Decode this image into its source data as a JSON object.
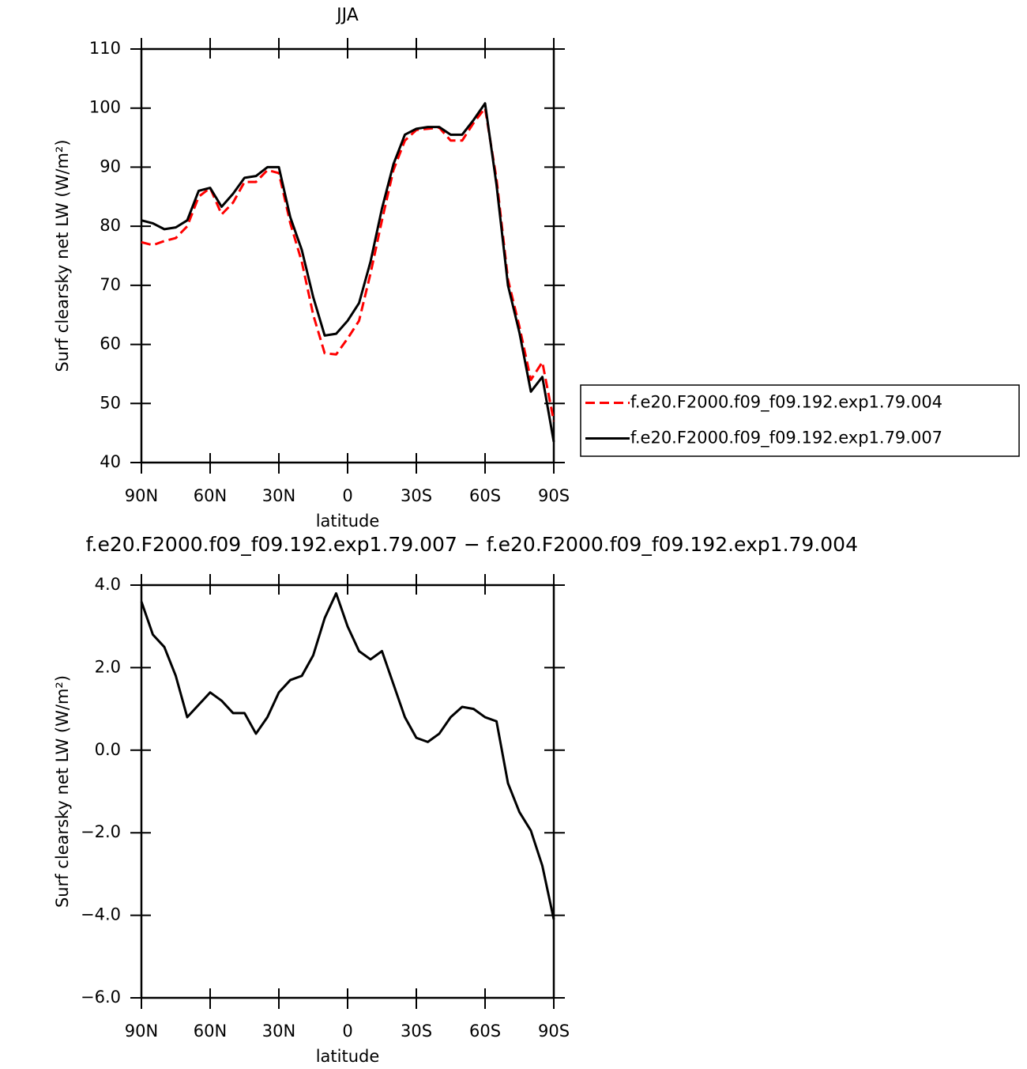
{
  "chart_data": [
    {
      "type": "line",
      "title": "JJA",
      "xlabel": "latitude",
      "ylabel": "Surf clearsky net LW (W/m²)",
      "x": [
        90,
        85,
        80,
        75,
        70,
        65,
        60,
        55,
        50,
        45,
        40,
        35,
        30,
        25,
        20,
        15,
        10,
        5,
        0,
        -5,
        -10,
        -15,
        -20,
        -25,
        -30,
        -35,
        -40,
        -45,
        -50,
        -55,
        -60,
        -65,
        -70,
        -75,
        -80,
        -85,
        -90
      ],
      "xlim": [
        90,
        -90
      ],
      "xticks": [
        {
          "value": 90,
          "label": "90N"
        },
        {
          "value": 60,
          "label": "60N"
        },
        {
          "value": 30,
          "label": "30N"
        },
        0,
        {
          "value": -30,
          "label": "30S"
        },
        {
          "value": -60,
          "label": "60S"
        },
        {
          "value": -90,
          "label": "90S"
        }
      ],
      "ylim": [
        40,
        110
      ],
      "yticks": [
        40,
        50,
        60,
        70,
        80,
        90,
        100,
        110
      ],
      "legend": "right",
      "series": [
        {
          "name": "f.e20.F2000.f09_f09.192.exp1.79.004",
          "color": "#ff0000",
          "style": "dashed",
          "values": [
            77.3,
            76.8,
            77.5,
            78,
            80,
            85,
            86.5,
            82,
            84,
            87.5,
            87.5,
            89.5,
            89,
            80.5,
            74,
            65,
            58.5,
            58.3,
            61,
            64,
            72,
            81,
            89.5,
            94.5,
            96.3,
            96.5,
            96.7,
            94.5,
            94.5,
            97.5,
            100,
            88,
            71,
            63,
            54,
            57,
            47
          ]
        },
        {
          "name": "f.e20.F2000.f09_f09.192.exp1.79.007",
          "color": "#000000",
          "style": "solid",
          "values": [
            81,
            80.5,
            79.5,
            79.8,
            81,
            86,
            86.5,
            83.3,
            85.5,
            88.2,
            88.5,
            90,
            90,
            81.5,
            76,
            68,
            61.5,
            61.8,
            64,
            67,
            74,
            83,
            90.5,
            95.5,
            96.5,
            96.8,
            96.8,
            95.5,
            95.5,
            98,
            100.8,
            87,
            70,
            62,
            52,
            54.5,
            43.5
          ]
        }
      ]
    },
    {
      "type": "line",
      "title": "f.e20.F2000.f09_f09.192.exp1.79.007 − f.e20.F2000.f09_f09.192.exp1.79.004",
      "xlabel": "latitude",
      "ylabel": "Surf clearsky net LW (W/m²)",
      "x": [
        90,
        85,
        80,
        75,
        70,
        65,
        60,
        55,
        50,
        45,
        40,
        35,
        30,
        25,
        20,
        15,
        10,
        5,
        0,
        -5,
        -10,
        -15,
        -20,
        -25,
        -30,
        -35,
        -40,
        -45,
        -50,
        -55,
        -60,
        -65,
        -70,
        -75,
        -80,
        -85,
        -90
      ],
      "xlim": [
        90,
        -90
      ],
      "xticks": [
        {
          "value": 90,
          "label": "90N"
        },
        {
          "value": 60,
          "label": "60N"
        },
        {
          "value": 30,
          "label": "30N"
        },
        0,
        {
          "value": -30,
          "label": "30S"
        },
        {
          "value": -60,
          "label": "60S"
        },
        {
          "value": -90,
          "label": "90S"
        }
      ],
      "ylim": [
        -6,
        4
      ],
      "yticks": [
        {
          "value": -6,
          "label": "−6.0"
        },
        {
          "value": -4,
          "label": "−4.0"
        },
        {
          "value": -2,
          "label": "−2.0"
        },
        {
          "value": 0,
          "label": "0.0"
        },
        {
          "value": 2,
          "label": "2.0"
        },
        {
          "value": 4,
          "label": "4.0"
        }
      ],
      "series": [
        {
          "color": "#000000",
          "style": "solid",
          "values": [
            3.6,
            2.8,
            2.5,
            1.8,
            0.8,
            1.1,
            1.4,
            1.2,
            0.9,
            0.9,
            0.4,
            0.8,
            1.4,
            1.7,
            1.8,
            2.3,
            3.2,
            3.8,
            3.0,
            2.4,
            2.2,
            2.4,
            1.6,
            0.8,
            0.3,
            0.2,
            0.4,
            0.8,
            1.05,
            1.0,
            0.8,
            0.7,
            -0.8,
            -1.5,
            -1.95,
            -2.8,
            -4.1
          ]
        }
      ]
    }
  ]
}
